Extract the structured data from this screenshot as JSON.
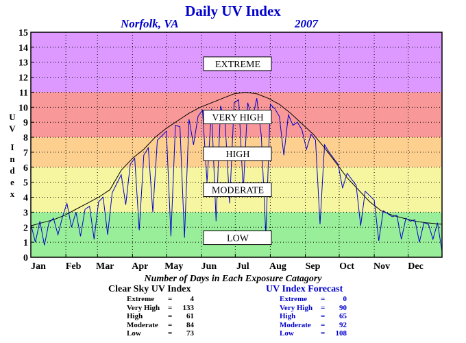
{
  "chart_data": {
    "type": "line",
    "title": "Daily UV Index",
    "subtitle_location": "Norfolk, VA",
    "subtitle_year": "2007",
    "ylabel": "UV Index",
    "ylim": [
      0,
      15
    ],
    "yticks": [
      0,
      1,
      2,
      3,
      4,
      5,
      6,
      7,
      8,
      9,
      10,
      11,
      12,
      13,
      14,
      15
    ],
    "xlim": [
      1,
      365
    ],
    "x_unit": "day of year",
    "xticks": [
      {
        "label": "Jan",
        "day": 1
      },
      {
        "label": "Feb",
        "day": 32
      },
      {
        "label": "Mar",
        "day": 60
      },
      {
        "label": "Apr",
        "day": 91
      },
      {
        "label": "May",
        "day": 121
      },
      {
        "label": "Jun",
        "day": 152
      },
      {
        "label": "Jul",
        "day": 182
      },
      {
        "label": "Aug",
        "day": 213
      },
      {
        "label": "Sep",
        "day": 244
      },
      {
        "label": "Oct",
        "day": 274
      },
      {
        "label": "Nov",
        "day": 305
      },
      {
        "label": "Dec",
        "day": 335
      }
    ],
    "grid": true,
    "bands": [
      {
        "label": "LOW",
        "from": 0,
        "to": 3,
        "color": "#99ee99",
        "label_y": 1.3
      },
      {
        "label": "MODERATE",
        "from": 3,
        "to": 6,
        "color": "#f6f6a0",
        "label_y": 4.5
      },
      {
        "label": "HIGH",
        "from": 6,
        "to": 8,
        "color": "#fdd090",
        "label_y": 6.9
      },
      {
        "label": "VERY HIGH",
        "from": 8,
        "to": 11,
        "color": "#f89898",
        "label_y": 9.35
      },
      {
        "label": "EXTREME",
        "from": 11,
        "to": 15,
        "color": "#dd99ff",
        "label_y": 12.9
      }
    ],
    "series": [
      {
        "name": "Clear Sky UV Index",
        "color": "#000000",
        "x": [
          1,
          11,
          21,
          31,
          41,
          51,
          61,
          71,
          81,
          91,
          101,
          111,
          121,
          131,
          141,
          151,
          161,
          171,
          181,
          191,
          201,
          211,
          221,
          231,
          241,
          251,
          261,
          271,
          281,
          291,
          301,
          311,
          321,
          331,
          341,
          351,
          365
        ],
        "values": [
          2.1,
          2.3,
          2.5,
          2.8,
          3.2,
          3.6,
          4.0,
          4.5,
          5.8,
          6.6,
          7.2,
          8.0,
          8.6,
          9.1,
          9.6,
          10.0,
          10.3,
          10.6,
          10.9,
          11.0,
          10.9,
          10.6,
          10.2,
          9.6,
          8.9,
          8.2,
          7.3,
          6.3,
          5.3,
          4.5,
          3.7,
          3.1,
          2.8,
          2.6,
          2.4,
          2.3,
          2.2
        ]
      },
      {
        "name": "UV Index Forecast",
        "color": "#0000cc",
        "x": [
          1,
          5,
          9,
          13,
          17,
          21,
          25,
          29,
          33,
          37,
          41,
          45,
          49,
          53,
          57,
          61,
          65,
          69,
          73,
          77,
          81,
          85,
          89,
          93,
          97,
          101,
          105,
          109,
          113,
          117,
          121,
          125,
          129,
          133,
          137,
          141,
          145,
          149,
          153,
          157,
          161,
          165,
          169,
          173,
          177,
          181,
          185,
          189,
          193,
          197,
          201,
          205,
          209,
          213,
          217,
          221,
          225,
          229,
          233,
          237,
          241,
          245,
          249,
          253,
          257,
          261,
          265,
          269,
          273,
          277,
          281,
          285,
          289,
          293,
          297,
          301,
          305,
          309,
          313,
          317,
          321,
          325,
          329,
          333,
          337,
          341,
          345,
          349,
          353,
          357,
          361,
          365
        ],
        "values": [
          2.2,
          1.0,
          2.4,
          0.8,
          2.3,
          2.6,
          1.5,
          2.7,
          3.6,
          2.0,
          3.0,
          1.4,
          3.2,
          3.4,
          1.2,
          3.7,
          4.0,
          1.5,
          4.3,
          4.9,
          5.5,
          3.5,
          6.2,
          6.6,
          1.8,
          6.8,
          7.3,
          3.0,
          7.8,
          8.1,
          8.4,
          1.4,
          8.8,
          8.7,
          1.3,
          9.2,
          7.5,
          9.4,
          9.8,
          5.0,
          9.9,
          2.4,
          10.1,
          9.0,
          3.6,
          10.3,
          10.5,
          4.4,
          10.3,
          9.2,
          10.6,
          8.1,
          1.5,
          10.2,
          9.9,
          9.4,
          6.8,
          9.5,
          8.8,
          9.0,
          8.5,
          7.2,
          8.2,
          7.8,
          2.2,
          7.5,
          7.0,
          6.6,
          6.2,
          4.6,
          5.6,
          5.2,
          4.8,
          2.1,
          4.4,
          4.1,
          3.8,
          1.1,
          3.1,
          2.9,
          2.7,
          2.8,
          1.2,
          2.6,
          2.4,
          2.5,
          1.0,
          2.3,
          2.2,
          1.2,
          2.3,
          0.4
        ]
      }
    ],
    "summary": {
      "title": "Number of Days in Each Exposure Catagory",
      "clear_sky": {
        "heading": "Clear Sky UV Index",
        "rows": [
          {
            "label": "Extreme",
            "value": "4"
          },
          {
            "label": "Very High",
            "value": "133"
          },
          {
            "label": "High",
            "value": "61"
          },
          {
            "label": "Moderate",
            "value": "84"
          },
          {
            "label": "Low",
            "value": "73"
          }
        ]
      },
      "forecast": {
        "heading": "UV Index Forecast",
        "rows": [
          {
            "label": "Extreme",
            "value": "0"
          },
          {
            "label": "Very High",
            "value": "90"
          },
          {
            "label": "High",
            "value": "65"
          },
          {
            "label": "Moderate",
            "value": "92"
          },
          {
            "label": "Low",
            "value": "108"
          }
        ]
      }
    }
  }
}
